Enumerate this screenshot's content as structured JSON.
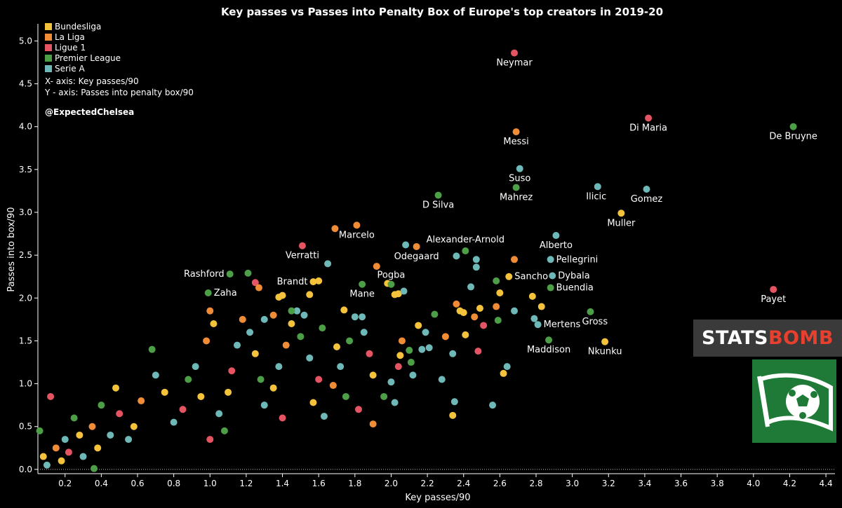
{
  "brand": {
    "statsbomb_logo": "STATSBOMB"
  },
  "chart_data": {
    "type": "scatter",
    "title": "Key passes vs Passes into Penalty Box of Europe's top creators in 2019-20",
    "xlabel": "Key passes/90",
    "ylabel": "Passes into box/90",
    "xlim": [
      0.05,
      4.45
    ],
    "ylim": [
      -0.05,
      5.2
    ],
    "x_ticks": [
      "0.2",
      "0.4",
      "0.6",
      "0.8",
      "1.0",
      "1.2",
      "1.4",
      "1.6",
      "1.8",
      "2.0",
      "2.2",
      "2.4",
      "2.6",
      "2.8",
      "3.0",
      "3.2",
      "3.4",
      "3.6",
      "3.8",
      "4.0",
      "4.2",
      "4.4"
    ],
    "y_ticks": [
      "0.0",
      "0.5",
      "1.0",
      "1.5",
      "2.0",
      "2.5",
      "3.0",
      "3.5",
      "4.0",
      "4.5",
      "5.0"
    ],
    "grid": false,
    "legend_position": "top-left",
    "legend": [
      {
        "name": "Bundesliga",
        "color": "#f5c33b"
      },
      {
        "name": "La Liga",
        "color": "#f08c36"
      },
      {
        "name": "Ligue 1",
        "color": "#e45463"
      },
      {
        "name": "Premier League",
        "color": "#4c9e47"
      },
      {
        "name": "Serie A",
        "color": "#6fb8b8"
      }
    ],
    "notes": [
      "X- axis: Key passes/90",
      "Y - axis: Passes into penalty box/90"
    ],
    "credit": "@ExpectedChelsea",
    "labeled_points": [
      {
        "name": "Neymar",
        "league": "Ligue 1",
        "x": 2.68,
        "y": 4.86
      },
      {
        "name": "Messi",
        "league": "La Liga",
        "x": 2.69,
        "y": 3.94
      },
      {
        "name": "Di Maria",
        "league": "Ligue 1",
        "x": 3.42,
        "y": 4.1
      },
      {
        "name": "De Bruyne",
        "league": "Premier League",
        "x": 4.22,
        "y": 4.0
      },
      {
        "name": "Suso",
        "league": "Serie A",
        "x": 2.71,
        "y": 3.51
      },
      {
        "name": "Mahrez",
        "league": "Premier League",
        "x": 2.69,
        "y": 3.29
      },
      {
        "name": "Ilicic",
        "league": "Serie A",
        "x": 3.14,
        "y": 3.3
      },
      {
        "name": "Gomez",
        "league": "Serie A",
        "x": 3.41,
        "y": 3.27
      },
      {
        "name": "D Silva",
        "league": "Premier League",
        "x": 2.26,
        "y": 3.2
      },
      {
        "name": "Muller",
        "league": "Bundesliga",
        "x": 3.27,
        "y": 2.99
      },
      {
        "name": "Marcelo",
        "league": "La Liga",
        "x": 1.81,
        "y": 2.85
      },
      {
        "name": "Alberto",
        "league": "Serie A",
        "x": 2.91,
        "y": 2.73
      },
      {
        "name": "Alexander-Arnold",
        "league": "Premier League",
        "x": 2.41,
        "y": 2.55
      },
      {
        "name": "Odegaard",
        "league": "La Liga",
        "x": 2.14,
        "y": 2.6
      },
      {
        "name": "Verratti",
        "league": "Ligue 1",
        "x": 1.51,
        "y": 2.61
      },
      {
        "name": "Pellegrini",
        "league": "Serie A",
        "x": 2.88,
        "y": 2.45
      },
      {
        "name": "Rashford",
        "league": "Premier League",
        "x": 1.11,
        "y": 2.28
      },
      {
        "name": "Sancho",
        "league": "Bundesliga",
        "x": 2.65,
        "y": 2.25
      },
      {
        "name": "Dybala",
        "league": "Serie A",
        "x": 2.89,
        "y": 2.26
      },
      {
        "name": "Pogba",
        "league": "Premier League",
        "x": 2.0,
        "y": 2.16
      },
      {
        "name": "Brandt",
        "league": "Bundesliga",
        "x": 1.57,
        "y": 2.19
      },
      {
        "name": "Buendia",
        "league": "Premier League",
        "x": 2.88,
        "y": 2.12
      },
      {
        "name": "Mane",
        "league": "Premier League",
        "x": 1.84,
        "y": 2.16
      },
      {
        "name": "Zaha",
        "league": "Premier League",
        "x": 0.99,
        "y": 2.06
      },
      {
        "name": "Payet",
        "league": "Ligue 1",
        "x": 4.11,
        "y": 2.1
      },
      {
        "name": "Mertens",
        "league": "Serie A",
        "x": 2.81,
        "y": 1.69
      },
      {
        "name": "Gross",
        "league": "Premier League",
        "x": 3.1,
        "y": 1.84
      },
      {
        "name": "Maddison",
        "league": "Premier League",
        "x": 2.87,
        "y": 1.51
      },
      {
        "name": "Nkunku",
        "league": "Bundesliga",
        "x": 3.18,
        "y": 1.49
      }
    ],
    "other_points": [
      {
        "x": 1.69,
        "y": 2.81,
        "league": "La Liga"
      },
      {
        "x": 1.65,
        "y": 2.4,
        "league": "Serie A"
      },
      {
        "x": 1.6,
        "y": 2.2,
        "league": "Bundesliga"
      },
      {
        "x": 1.21,
        "y": 2.29,
        "league": "Premier League"
      },
      {
        "x": 1.25,
        "y": 2.18,
        "league": "Ligue 1"
      },
      {
        "x": 1.27,
        "y": 2.12,
        "league": "La Liga"
      },
      {
        "x": 1.38,
        "y": 2.01,
        "league": "Bundesliga"
      },
      {
        "x": 1.4,
        "y": 2.03,
        "league": "Bundesliga"
      },
      {
        "x": 1.55,
        "y": 2.04,
        "league": "Bundesliga"
      },
      {
        "x": 1.92,
        "y": 2.37,
        "league": "La Liga"
      },
      {
        "x": 1.98,
        "y": 2.17,
        "league": "Bundesliga"
      },
      {
        "x": 2.02,
        "y": 2.04,
        "league": "Bundesliga"
      },
      {
        "x": 2.04,
        "y": 2.05,
        "league": "Bundesliga"
      },
      {
        "x": 2.07,
        "y": 2.08,
        "league": "Serie A"
      },
      {
        "x": 2.08,
        "y": 2.62,
        "league": "Serie A"
      },
      {
        "x": 2.36,
        "y": 2.49,
        "league": "Serie A"
      },
      {
        "x": 2.47,
        "y": 2.45,
        "league": "Serie A"
      },
      {
        "x": 2.47,
        "y": 2.36,
        "league": "Serie A"
      },
      {
        "x": 2.44,
        "y": 2.13,
        "league": "Serie A"
      },
      {
        "x": 2.58,
        "y": 2.2,
        "league": "Premier League"
      },
      {
        "x": 2.6,
        "y": 2.06,
        "league": "Bundesliga"
      },
      {
        "x": 2.68,
        "y": 2.45,
        "league": "La Liga"
      },
      {
        "x": 2.36,
        "y": 1.93,
        "league": "La Liga"
      },
      {
        "x": 2.38,
        "y": 1.85,
        "league": "Bundesliga"
      },
      {
        "x": 2.4,
        "y": 1.83,
        "league": "Bundesliga"
      },
      {
        "x": 2.46,
        "y": 1.78,
        "league": "La Liga"
      },
      {
        "x": 2.49,
        "y": 1.88,
        "league": "Bundesliga"
      },
      {
        "x": 2.59,
        "y": 1.74,
        "league": "Premier League"
      },
      {
        "x": 2.68,
        "y": 1.85,
        "league": "Serie A"
      },
      {
        "x": 2.78,
        "y": 2.02,
        "league": "Bundesliga"
      },
      {
        "x": 2.83,
        "y": 1.9,
        "league": "Bundesliga"
      },
      {
        "x": 2.79,
        "y": 1.76,
        "league": "Serie A"
      },
      {
        "x": 2.51,
        "y": 1.68,
        "league": "Ligue 1"
      },
      {
        "x": 2.41,
        "y": 1.57,
        "league": "Bundesliga"
      },
      {
        "x": 2.48,
        "y": 1.38,
        "league": "Ligue 1"
      },
      {
        "x": 2.34,
        "y": 1.35,
        "league": "Serie A"
      },
      {
        "x": 2.64,
        "y": 1.2,
        "league": "Serie A"
      },
      {
        "x": 2.62,
        "y": 1.12,
        "league": "Bundesliga"
      },
      {
        "x": 2.56,
        "y": 0.75,
        "league": "Serie A"
      },
      {
        "x": 2.35,
        "y": 0.79,
        "league": "Serie A"
      },
      {
        "x": 2.34,
        "y": 0.63,
        "league": "Bundesliga"
      },
      {
        "x": 2.28,
        "y": 1.05,
        "league": "Serie A"
      },
      {
        "x": 2.15,
        "y": 1.68,
        "league": "Bundesliga"
      },
      {
        "x": 2.19,
        "y": 1.6,
        "league": "Serie A"
      },
      {
        "x": 2.24,
        "y": 1.81,
        "league": "Premier League"
      },
      {
        "x": 2.3,
        "y": 1.55,
        "league": "La Liga"
      },
      {
        "x": 2.17,
        "y": 1.4,
        "league": "Serie A"
      },
      {
        "x": 2.21,
        "y": 1.42,
        "league": "Serie A"
      },
      {
        "x": 2.1,
        "y": 1.39,
        "league": "Premier League"
      },
      {
        "x": 2.06,
        "y": 1.5,
        "league": "La Liga"
      },
      {
        "x": 2.05,
        "y": 1.33,
        "league": "Bundesliga"
      },
      {
        "x": 2.11,
        "y": 1.25,
        "league": "Premier League"
      },
      {
        "x": 2.12,
        "y": 1.1,
        "league": "Serie A"
      },
      {
        "x": 2.04,
        "y": 1.2,
        "league": "Ligue 1"
      },
      {
        "x": 2.0,
        "y": 1.02,
        "league": "Serie A"
      },
      {
        "x": 1.96,
        "y": 0.85,
        "league": "Premier League"
      },
      {
        "x": 2.02,
        "y": 0.78,
        "league": "Serie A"
      },
      {
        "x": 1.9,
        "y": 1.1,
        "league": "Bundesliga"
      },
      {
        "x": 1.88,
        "y": 1.35,
        "league": "Ligue 1"
      },
      {
        "x": 1.85,
        "y": 1.6,
        "league": "Serie A"
      },
      {
        "x": 1.8,
        "y": 1.78,
        "league": "Serie A"
      },
      {
        "x": 1.84,
        "y": 1.78,
        "league": "Serie A"
      },
      {
        "x": 1.74,
        "y": 1.86,
        "league": "Bundesliga"
      },
      {
        "x": 1.77,
        "y": 1.5,
        "league": "Premier League"
      },
      {
        "x": 1.7,
        "y": 1.43,
        "league": "Bundesliga"
      },
      {
        "x": 1.72,
        "y": 1.2,
        "league": "Serie A"
      },
      {
        "x": 1.68,
        "y": 0.98,
        "league": "La Liga"
      },
      {
        "x": 1.75,
        "y": 0.85,
        "league": "Premier League"
      },
      {
        "x": 1.82,
        "y": 0.7,
        "league": "Ligue 1"
      },
      {
        "x": 1.9,
        "y": 0.53,
        "league": "La Liga"
      },
      {
        "x": 1.63,
        "y": 0.62,
        "league": "Serie A"
      },
      {
        "x": 1.57,
        "y": 0.78,
        "league": "Bundesliga"
      },
      {
        "x": 1.6,
        "y": 1.05,
        "league": "Ligue 1"
      },
      {
        "x": 1.55,
        "y": 1.3,
        "league": "Serie A"
      },
      {
        "x": 1.5,
        "y": 1.55,
        "league": "Premier League"
      },
      {
        "x": 1.45,
        "y": 1.7,
        "league": "Bundesliga"
      },
      {
        "x": 1.48,
        "y": 1.85,
        "league": "Serie A"
      },
      {
        "x": 1.52,
        "y": 1.8,
        "league": "Serie A"
      },
      {
        "x": 1.42,
        "y": 1.45,
        "league": "La Liga"
      },
      {
        "x": 1.38,
        "y": 1.2,
        "league": "Serie A"
      },
      {
        "x": 1.35,
        "y": 0.95,
        "league": "Bundesliga"
      },
      {
        "x": 1.4,
        "y": 0.6,
        "league": "Ligue 1"
      },
      {
        "x": 1.3,
        "y": 0.75,
        "league": "Serie A"
      },
      {
        "x": 1.28,
        "y": 1.05,
        "league": "Premier League"
      },
      {
        "x": 1.25,
        "y": 1.35,
        "league": "Bundesliga"
      },
      {
        "x": 1.22,
        "y": 1.6,
        "league": "Serie A"
      },
      {
        "x": 1.18,
        "y": 1.75,
        "league": "La Liga"
      },
      {
        "x": 1.15,
        "y": 1.45,
        "league": "Serie A"
      },
      {
        "x": 1.12,
        "y": 1.15,
        "league": "Ligue 1"
      },
      {
        "x": 1.1,
        "y": 0.9,
        "league": "Bundesliga"
      },
      {
        "x": 1.05,
        "y": 0.65,
        "league": "Serie A"
      },
      {
        "x": 1.0,
        "y": 0.35,
        "league": "Ligue 1"
      },
      {
        "x": 1.08,
        "y": 0.45,
        "league": "Premier League"
      },
      {
        "x": 0.95,
        "y": 0.85,
        "league": "Bundesliga"
      },
      {
        "x": 0.92,
        "y": 1.2,
        "league": "Serie A"
      },
      {
        "x": 0.98,
        "y": 1.5,
        "league": "La Liga"
      },
      {
        "x": 1.02,
        "y": 1.7,
        "league": "Bundesliga"
      },
      {
        "x": 0.88,
        "y": 1.05,
        "league": "Premier League"
      },
      {
        "x": 0.85,
        "y": 0.7,
        "league": "Ligue 1"
      },
      {
        "x": 0.8,
        "y": 0.55,
        "league": "Serie A"
      },
      {
        "x": 0.75,
        "y": 0.9,
        "league": "Bundesliga"
      },
      {
        "x": 0.7,
        "y": 1.1,
        "league": "Serie A"
      },
      {
        "x": 0.68,
        "y": 1.4,
        "league": "Premier League"
      },
      {
        "x": 0.62,
        "y": 0.8,
        "league": "La Liga"
      },
      {
        "x": 0.58,
        "y": 0.5,
        "league": "Bundesliga"
      },
      {
        "x": 0.55,
        "y": 0.35,
        "league": "Serie A"
      },
      {
        "x": 0.5,
        "y": 0.65,
        "league": "Ligue 1"
      },
      {
        "x": 0.48,
        "y": 0.95,
        "league": "Bundesliga"
      },
      {
        "x": 0.45,
        "y": 0.4,
        "league": "Serie A"
      },
      {
        "x": 0.4,
        "y": 0.75,
        "league": "Premier League"
      },
      {
        "x": 0.38,
        "y": 0.25,
        "league": "Bundesliga"
      },
      {
        "x": 0.35,
        "y": 0.5,
        "league": "La Liga"
      },
      {
        "x": 0.3,
        "y": 0.15,
        "league": "Serie A"
      },
      {
        "x": 0.28,
        "y": 0.4,
        "league": "Bundesliga"
      },
      {
        "x": 0.25,
        "y": 0.6,
        "league": "Premier League"
      },
      {
        "x": 0.22,
        "y": 0.2,
        "league": "Ligue 1"
      },
      {
        "x": 0.2,
        "y": 0.35,
        "league": "Serie A"
      },
      {
        "x": 0.18,
        "y": 0.1,
        "league": "Bundesliga"
      },
      {
        "x": 0.15,
        "y": 0.25,
        "league": "La Liga"
      },
      {
        "x": 0.12,
        "y": 0.85,
        "league": "Ligue 1"
      },
      {
        "x": 0.1,
        "y": 0.05,
        "league": "Serie A"
      },
      {
        "x": 0.08,
        "y": 0.15,
        "league": "Bundesliga"
      },
      {
        "x": 0.06,
        "y": 0.45,
        "league": "Premier League"
      },
      {
        "x": 0.36,
        "y": 0.01,
        "league": "Premier League"
      },
      {
        "x": 1.0,
        "y": 1.85,
        "league": "La Liga"
      },
      {
        "x": 1.45,
        "y": 1.85,
        "league": "Premier League"
      },
      {
        "x": 1.35,
        "y": 1.8,
        "league": "La Liga"
      },
      {
        "x": 1.3,
        "y": 1.75,
        "league": "Serie A"
      },
      {
        "x": 1.62,
        "y": 1.65,
        "league": "Premier League"
      },
      {
        "x": 2.58,
        "y": 1.9,
        "league": "La Liga"
      }
    ]
  }
}
